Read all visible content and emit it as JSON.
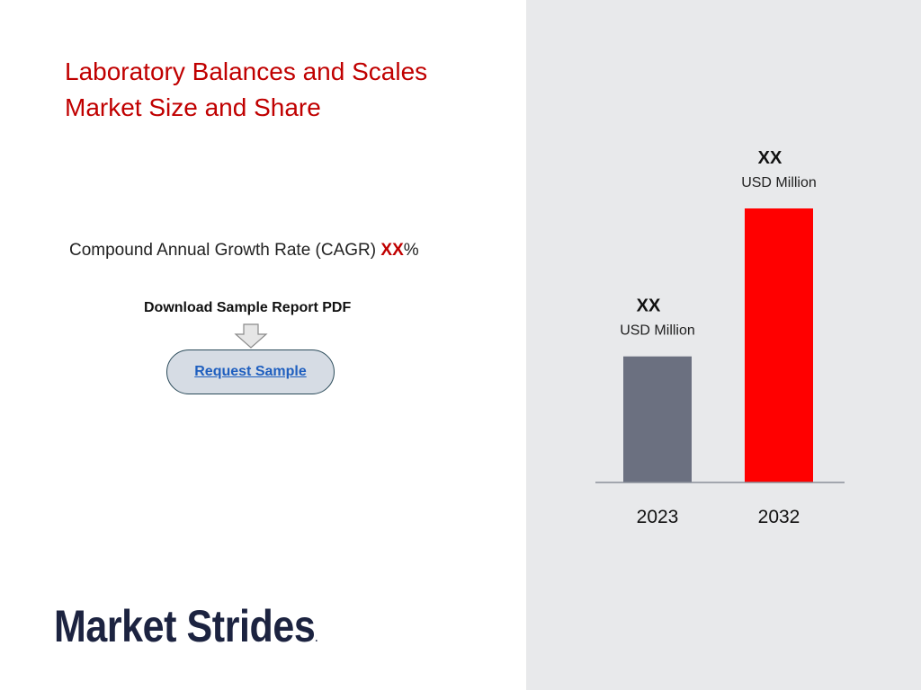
{
  "header": {
    "title_line1": "Laboratory Balances and Scales",
    "title_line2": "Market Size and Share"
  },
  "cagr": {
    "label": "Compound Annual Growth Rate (CAGR) ",
    "value": "XX",
    "unit": "%"
  },
  "download": {
    "label": "Download Sample Report PDF",
    "button_label": "Request Sample",
    "arrow_icon": "down-arrow-icon"
  },
  "logo": {
    "text": "Market Strides",
    "mark": "."
  },
  "colors": {
    "title": "#c00000",
    "bar_2023": "#6b7080",
    "bar_2032": "#ff0000",
    "panel_bg": "#e8e9eb"
  },
  "chart_data": {
    "type": "bar",
    "categories": [
      "2023",
      "2032"
    ],
    "values": [
      46,
      100
    ],
    "value_labels": [
      "XX",
      "XX"
    ],
    "unit_labels": [
      "USD Million",
      "USD Million"
    ],
    "colors": [
      "#6b7080",
      "#ff0000"
    ],
    "grid": false,
    "ylim": [
      0,
      100
    ]
  }
}
